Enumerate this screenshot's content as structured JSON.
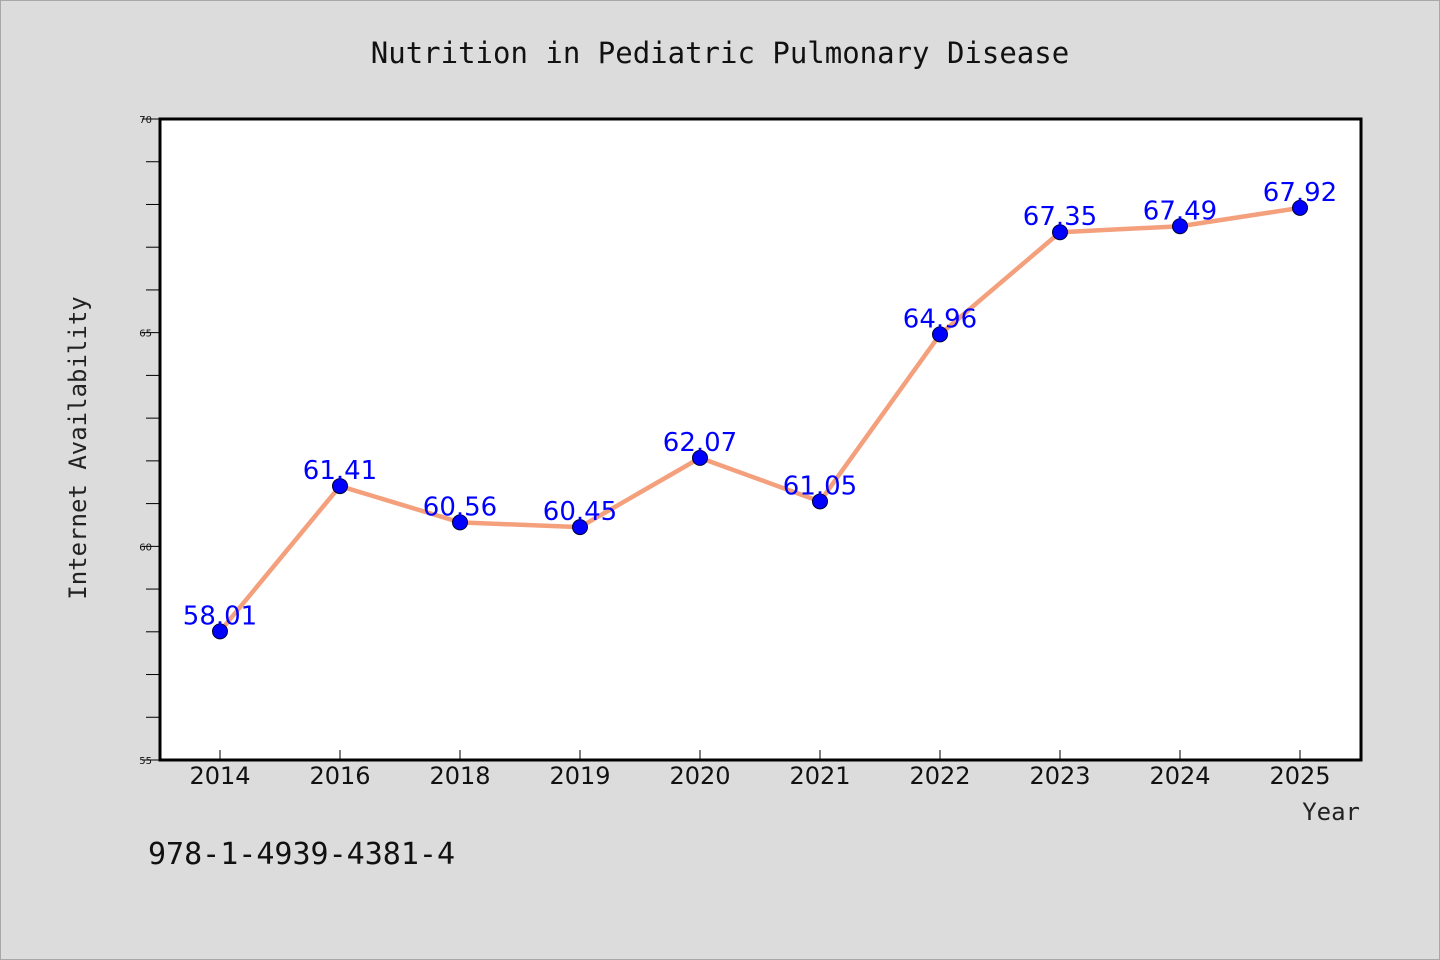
{
  "chart_data": {
    "type": "line",
    "title": "Nutrition in Pediatric Pulmonary Disease",
    "xlabel": "Year",
    "ylabel": "Internet Availability",
    "categories": [
      "2014",
      "2016",
      "2018",
      "2019",
      "2020",
      "2021",
      "2022",
      "2023",
      "2024",
      "2025"
    ],
    "values": [
      58.01,
      61.41,
      60.56,
      60.45,
      62.07,
      61.05,
      64.96,
      67.35,
      67.49,
      67.92
    ],
    "data_labels": [
      "58.01",
      "61.41",
      "60.56",
      "60.45",
      "62.07",
      "61.05",
      "64.96",
      "67.35",
      "67.49",
      "67.92"
    ],
    "ylim": [
      55,
      70
    ],
    "yticks": [
      55,
      60,
      65,
      70
    ],
    "ytick_labels": [
      "55",
      "60",
      "65",
      "70"
    ],
    "grid": false,
    "legend": "none",
    "line_color": "#f4a07c",
    "marker_color": "#0000ff",
    "label_color": "#0000ff",
    "background_color": "#dcdcdc",
    "plot_background": "#ffffff"
  },
  "footer": {
    "isbn": "978-1-4939-4381-4"
  }
}
